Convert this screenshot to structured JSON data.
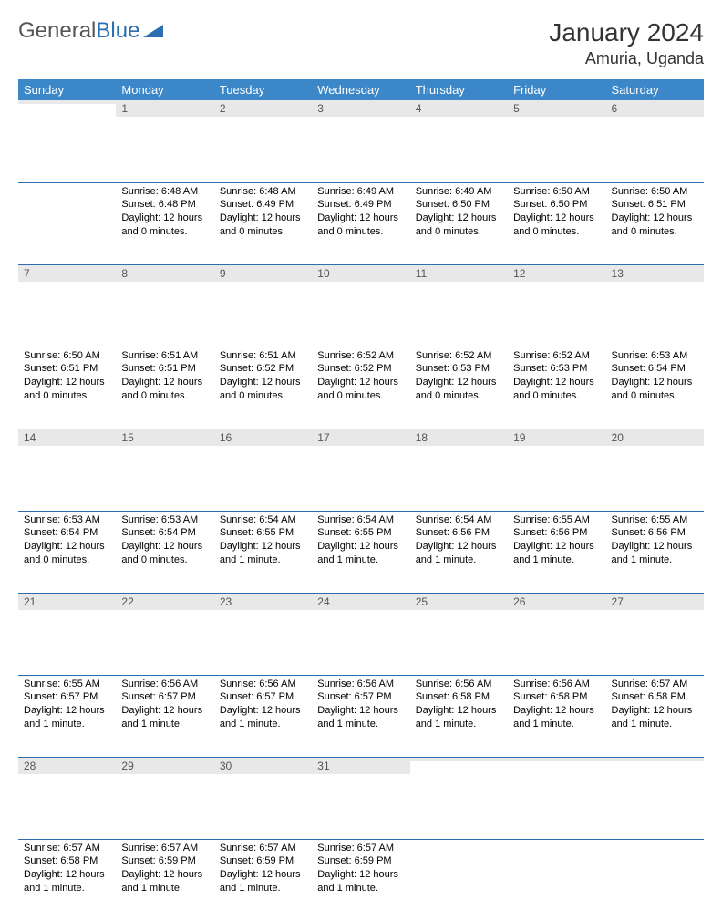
{
  "logo": {
    "part1": "General",
    "part2": "Blue"
  },
  "title": "January 2024",
  "location": "Amuria, Uganda",
  "colors": {
    "header_bg": "#3b87c8",
    "header_text": "#ffffff",
    "daynum_bg": "#e8e8e8",
    "daynum_text": "#555555",
    "rule": "#2b6fb0",
    "logo_gray": "#555555",
    "logo_blue": "#2b6fb0"
  },
  "weekdays": [
    "Sunday",
    "Monday",
    "Tuesday",
    "Wednesday",
    "Thursday",
    "Friday",
    "Saturday"
  ],
  "weeks": [
    [
      {
        "n": "",
        "sunrise": "",
        "sunset": "",
        "daylight": ""
      },
      {
        "n": "1",
        "sunrise": "Sunrise: 6:48 AM",
        "sunset": "Sunset: 6:48 PM",
        "daylight": "Daylight: 12 hours and 0 minutes."
      },
      {
        "n": "2",
        "sunrise": "Sunrise: 6:48 AM",
        "sunset": "Sunset: 6:49 PM",
        "daylight": "Daylight: 12 hours and 0 minutes."
      },
      {
        "n": "3",
        "sunrise": "Sunrise: 6:49 AM",
        "sunset": "Sunset: 6:49 PM",
        "daylight": "Daylight: 12 hours and 0 minutes."
      },
      {
        "n": "4",
        "sunrise": "Sunrise: 6:49 AM",
        "sunset": "Sunset: 6:50 PM",
        "daylight": "Daylight: 12 hours and 0 minutes."
      },
      {
        "n": "5",
        "sunrise": "Sunrise: 6:50 AM",
        "sunset": "Sunset: 6:50 PM",
        "daylight": "Daylight: 12 hours and 0 minutes."
      },
      {
        "n": "6",
        "sunrise": "Sunrise: 6:50 AM",
        "sunset": "Sunset: 6:51 PM",
        "daylight": "Daylight: 12 hours and 0 minutes."
      }
    ],
    [
      {
        "n": "7",
        "sunrise": "Sunrise: 6:50 AM",
        "sunset": "Sunset: 6:51 PM",
        "daylight": "Daylight: 12 hours and 0 minutes."
      },
      {
        "n": "8",
        "sunrise": "Sunrise: 6:51 AM",
        "sunset": "Sunset: 6:51 PM",
        "daylight": "Daylight: 12 hours and 0 minutes."
      },
      {
        "n": "9",
        "sunrise": "Sunrise: 6:51 AM",
        "sunset": "Sunset: 6:52 PM",
        "daylight": "Daylight: 12 hours and 0 minutes."
      },
      {
        "n": "10",
        "sunrise": "Sunrise: 6:52 AM",
        "sunset": "Sunset: 6:52 PM",
        "daylight": "Daylight: 12 hours and 0 minutes."
      },
      {
        "n": "11",
        "sunrise": "Sunrise: 6:52 AM",
        "sunset": "Sunset: 6:53 PM",
        "daylight": "Daylight: 12 hours and 0 minutes."
      },
      {
        "n": "12",
        "sunrise": "Sunrise: 6:52 AM",
        "sunset": "Sunset: 6:53 PM",
        "daylight": "Daylight: 12 hours and 0 minutes."
      },
      {
        "n": "13",
        "sunrise": "Sunrise: 6:53 AM",
        "sunset": "Sunset: 6:54 PM",
        "daylight": "Daylight: 12 hours and 0 minutes."
      }
    ],
    [
      {
        "n": "14",
        "sunrise": "Sunrise: 6:53 AM",
        "sunset": "Sunset: 6:54 PM",
        "daylight": "Daylight: 12 hours and 0 minutes."
      },
      {
        "n": "15",
        "sunrise": "Sunrise: 6:53 AM",
        "sunset": "Sunset: 6:54 PM",
        "daylight": "Daylight: 12 hours and 0 minutes."
      },
      {
        "n": "16",
        "sunrise": "Sunrise: 6:54 AM",
        "sunset": "Sunset: 6:55 PM",
        "daylight": "Daylight: 12 hours and 1 minute."
      },
      {
        "n": "17",
        "sunrise": "Sunrise: 6:54 AM",
        "sunset": "Sunset: 6:55 PM",
        "daylight": "Daylight: 12 hours and 1 minute."
      },
      {
        "n": "18",
        "sunrise": "Sunrise: 6:54 AM",
        "sunset": "Sunset: 6:56 PM",
        "daylight": "Daylight: 12 hours and 1 minute."
      },
      {
        "n": "19",
        "sunrise": "Sunrise: 6:55 AM",
        "sunset": "Sunset: 6:56 PM",
        "daylight": "Daylight: 12 hours and 1 minute."
      },
      {
        "n": "20",
        "sunrise": "Sunrise: 6:55 AM",
        "sunset": "Sunset: 6:56 PM",
        "daylight": "Daylight: 12 hours and 1 minute."
      }
    ],
    [
      {
        "n": "21",
        "sunrise": "Sunrise: 6:55 AM",
        "sunset": "Sunset: 6:57 PM",
        "daylight": "Daylight: 12 hours and 1 minute."
      },
      {
        "n": "22",
        "sunrise": "Sunrise: 6:56 AM",
        "sunset": "Sunset: 6:57 PM",
        "daylight": "Daylight: 12 hours and 1 minute."
      },
      {
        "n": "23",
        "sunrise": "Sunrise: 6:56 AM",
        "sunset": "Sunset: 6:57 PM",
        "daylight": "Daylight: 12 hours and 1 minute."
      },
      {
        "n": "24",
        "sunrise": "Sunrise: 6:56 AM",
        "sunset": "Sunset: 6:57 PM",
        "daylight": "Daylight: 12 hours and 1 minute."
      },
      {
        "n": "25",
        "sunrise": "Sunrise: 6:56 AM",
        "sunset": "Sunset: 6:58 PM",
        "daylight": "Daylight: 12 hours and 1 minute."
      },
      {
        "n": "26",
        "sunrise": "Sunrise: 6:56 AM",
        "sunset": "Sunset: 6:58 PM",
        "daylight": "Daylight: 12 hours and 1 minute."
      },
      {
        "n": "27",
        "sunrise": "Sunrise: 6:57 AM",
        "sunset": "Sunset: 6:58 PM",
        "daylight": "Daylight: 12 hours and 1 minute."
      }
    ],
    [
      {
        "n": "28",
        "sunrise": "Sunrise: 6:57 AM",
        "sunset": "Sunset: 6:58 PM",
        "daylight": "Daylight: 12 hours and 1 minute."
      },
      {
        "n": "29",
        "sunrise": "Sunrise: 6:57 AM",
        "sunset": "Sunset: 6:59 PM",
        "daylight": "Daylight: 12 hours and 1 minute."
      },
      {
        "n": "30",
        "sunrise": "Sunrise: 6:57 AM",
        "sunset": "Sunset: 6:59 PM",
        "daylight": "Daylight: 12 hours and 1 minute."
      },
      {
        "n": "31",
        "sunrise": "Sunrise: 6:57 AM",
        "sunset": "Sunset: 6:59 PM",
        "daylight": "Daylight: 12 hours and 1 minute."
      },
      {
        "n": "",
        "sunrise": "",
        "sunset": "",
        "daylight": ""
      },
      {
        "n": "",
        "sunrise": "",
        "sunset": "",
        "daylight": ""
      },
      {
        "n": "",
        "sunrise": "",
        "sunset": "",
        "daylight": ""
      }
    ]
  ]
}
